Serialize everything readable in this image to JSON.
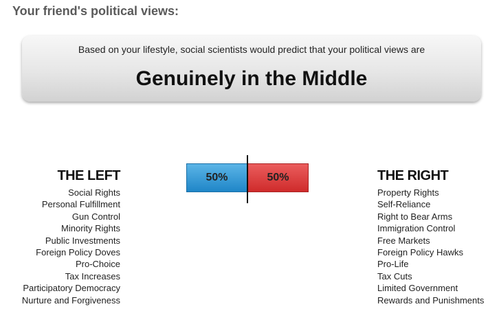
{
  "heading": "Your friend's political views:",
  "banner": {
    "subtitle": "Based on your lifestyle, social scientists would predict that your political views are",
    "result": "Genuinely in the Middle"
  },
  "meter": {
    "left_percent": 50,
    "right_percent": 50,
    "left_label": "50%",
    "right_label": "50%",
    "left_color": "#2a93d5",
    "right_color": "#d93636"
  },
  "left": {
    "title": "THE LEFT",
    "items": [
      "Social Rights",
      "Personal Fulfillment",
      "Gun Control",
      "Minority Rights",
      "Public Investments",
      "Foreign Policy Doves",
      "Pro-Choice",
      "Tax Increases",
      "Participatory Democracy",
      "Nurture and Forgiveness"
    ]
  },
  "right": {
    "title": "THE RIGHT",
    "items": [
      "Property Rights",
      "Self-Reliance",
      "Right to Bear Arms",
      "Immigration Control",
      "Free Markets",
      "Foreign Policy Hawks",
      "Pro-Life",
      "Tax Cuts",
      "Limited Government",
      "Rewards and Punishments"
    ]
  }
}
